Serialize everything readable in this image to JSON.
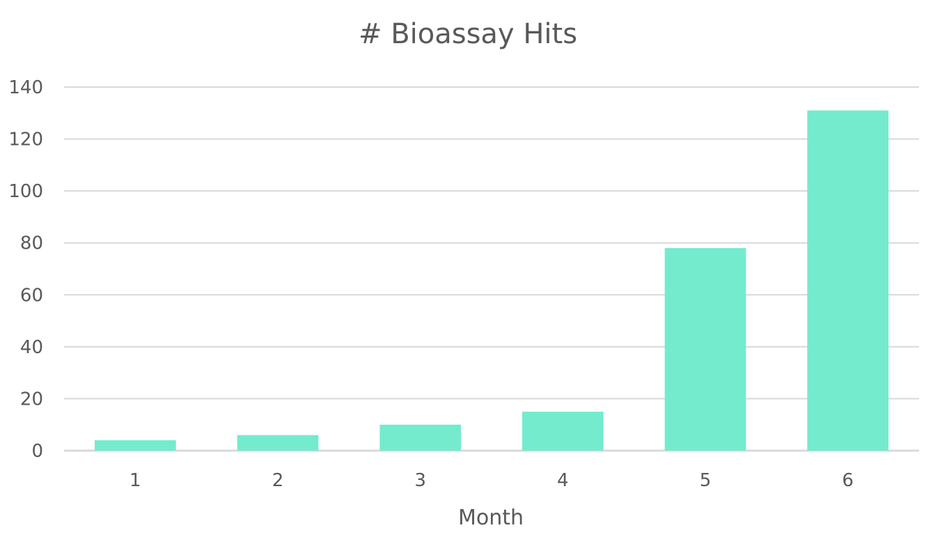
{
  "chart_data": {
    "type": "bar",
    "title": "# Bioassay Hits",
    "xlabel": "Month",
    "ylabel": "",
    "categories": [
      "1",
      "2",
      "3",
      "4",
      "5",
      "6"
    ],
    "values": [
      4,
      6,
      10,
      15,
      78,
      131
    ],
    "ylim": [
      0,
      140
    ],
    "yticks": [
      "0",
      "20",
      "40",
      "60",
      "80",
      "100",
      "120",
      "140"
    ],
    "grid": true,
    "legend": "none",
    "bar_color": "#74EBCD",
    "grid_color": "#D9D9D9",
    "text_color": "#595959"
  }
}
